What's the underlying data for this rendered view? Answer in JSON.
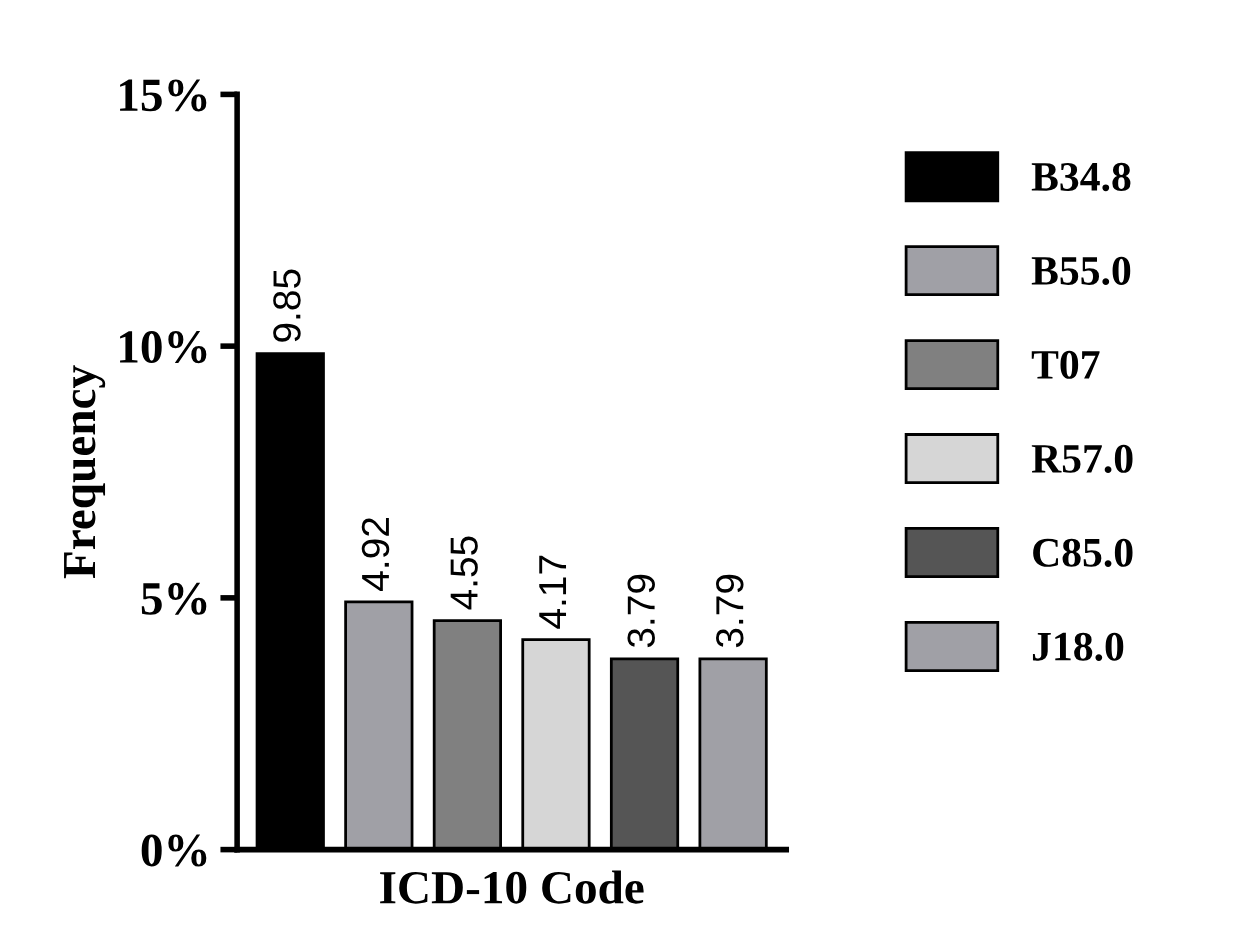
{
  "chart_data": {
    "type": "bar",
    "xlabel": "ICD-10 Code",
    "ylabel": "Frequency",
    "categories": [
      null,
      null,
      null,
      null,
      null,
      null
    ],
    "series": [
      {
        "name": "B34.8",
        "color": "#000000",
        "values": [
          9.85,
          null,
          null,
          null,
          null,
          null
        ]
      },
      {
        "name": "B55.0",
        "color": "#a0a0a6",
        "values": [
          null,
          4.92,
          null,
          null,
          null,
          null
        ]
      },
      {
        "name": "T07",
        "color": "#808080",
        "values": [
          null,
          null,
          4.55,
          null,
          null,
          null
        ]
      },
      {
        "name": "R57.0",
        "color": "#d6d6d6",
        "values": [
          null,
          null,
          null,
          4.17,
          null,
          null
        ]
      },
      {
        "name": "C85.0",
        "color": "#555555",
        "values": [
          null,
          null,
          null,
          null,
          3.79,
          null
        ]
      },
      {
        "name": "J18.0",
        "color": "#a0a0a6",
        "values": [
          null,
          null,
          null,
          null,
          null,
          3.79
        ]
      }
    ],
    "ylim": [
      0,
      15
    ],
    "yticks": [
      {
        "value": 0,
        "label": "0%"
      },
      {
        "value": 5,
        "label": "5%"
      },
      {
        "value": 10,
        "label": "10%"
      },
      {
        "value": 15,
        "label": "15%"
      }
    ],
    "data_labels": true,
    "legend": "right",
    "grid": false
  }
}
